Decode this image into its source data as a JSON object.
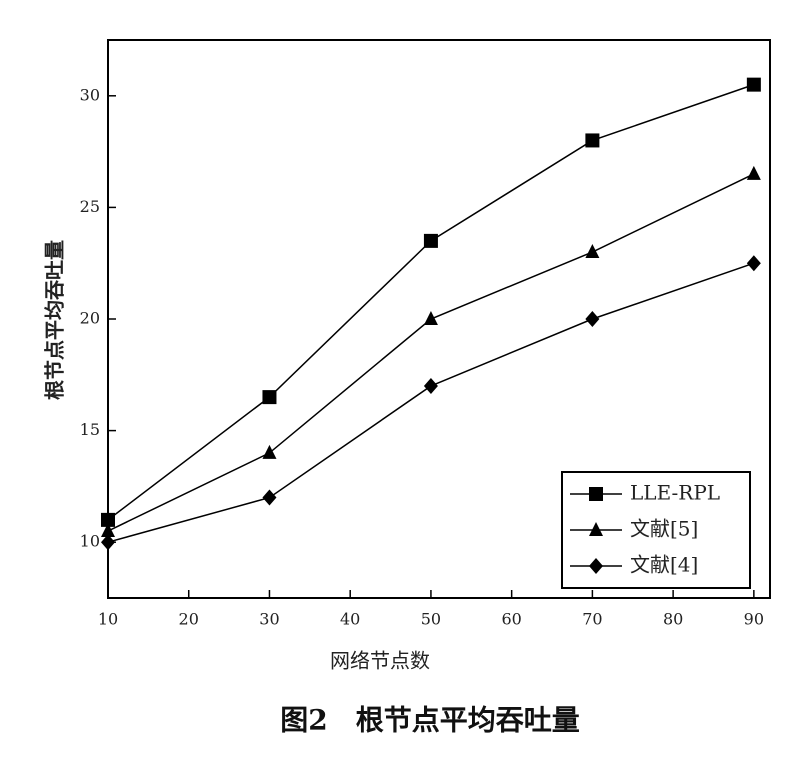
{
  "chart_data": {
    "type": "line",
    "caption": "图2　根节点平均吞吐量",
    "x_label": "网络节点数",
    "y_label": "根节点平均吞吐量",
    "x": [
      10,
      30,
      50,
      70,
      90
    ],
    "series": [
      {
        "name": "LLE-RPL",
        "color": "#000000",
        "marker": "square",
        "values": [
          11,
          16.5,
          23.5,
          28,
          30.5
        ]
      },
      {
        "name": "文献[5]",
        "color": "#000000",
        "marker": "triangle",
        "values": [
          10.5,
          14,
          20,
          23,
          26.5
        ]
      },
      {
        "name": "文献[4]",
        "color": "#000000",
        "marker": "diamond",
        "values": [
          10,
          12,
          17,
          20,
          22.5
        ]
      }
    ],
    "xlim": [
      10,
      92
    ],
    "xticks": [
      10,
      20,
      30,
      40,
      50,
      60,
      70,
      80,
      90
    ],
    "ylim": [
      7.5,
      32.5
    ],
    "yticks": [
      10,
      15,
      20,
      25,
      30
    ],
    "legend": "lower right"
  }
}
